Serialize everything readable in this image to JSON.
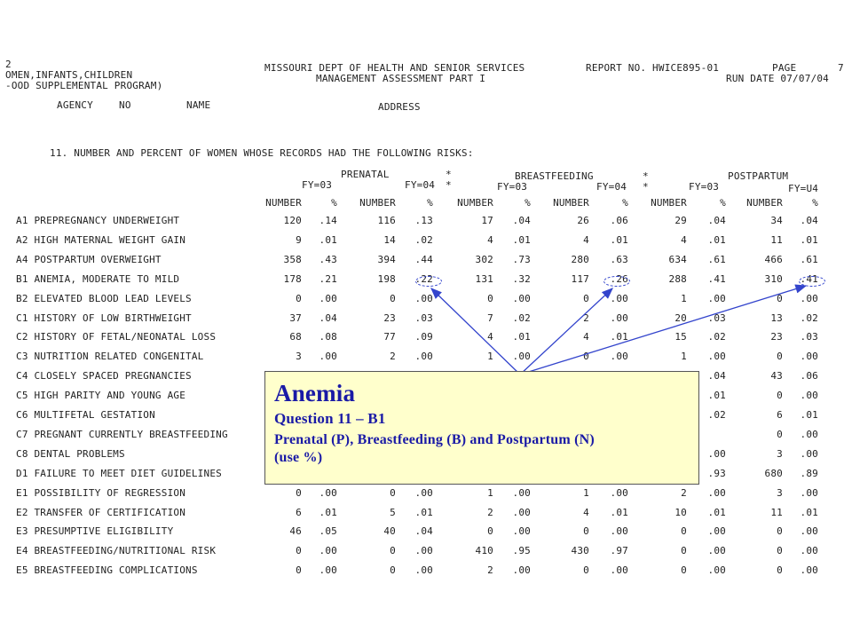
{
  "header": {
    "left_mark": "2",
    "left_line1": "OMEN,INFANTS,CHILDREN",
    "left_line2": "-OOD SUPPLEMENTAL PROGRAM)",
    "center_line1": "MISSOURI DEPT OF HEALTH AND SENIOR SERVICES",
    "center_line2": "MANAGEMENT ASSESSMENT PART I",
    "report_no": "REPORT NO. HWICE895-01",
    "page_label": "PAGE",
    "page_no": "7",
    "run_date": "RUN DATE 07/07/04",
    "agency_label": "AGENCY",
    "no_label": "NO",
    "name_label": "NAME",
    "address_label": "ADDRESS"
  },
  "section_title": "11. NUMBER AND PERCENT OF WOMEN WHOSE RECORDS HAD THE FOLLOWING RISKS:",
  "groups": {
    "prenatal": "PRENATAL",
    "breastfeeding": "BREASTFEEDING",
    "postpartum": "POSTPARTUM",
    "star": "*",
    "fy03": "FY=03",
    "fy04": "FY=04",
    "fy04_alt": "FY=U4"
  },
  "col_headers": [
    "NUMBER",
    "%",
    "NUMBER",
    "%",
    "NUMBER",
    "%",
    "NUMBER",
    "%",
    "NUMBER",
    "%",
    "NUMBER",
    "%"
  ],
  "rows": [
    {
      "label": "A1 PREPREGNANCY UNDERWEIGHT",
      "values": [
        "120",
        ".14",
        "116",
        ".13",
        "17",
        ".04",
        "26",
        ".06",
        "29",
        ".04",
        "34",
        ".04"
      ]
    },
    {
      "label": "A2 HIGH MATERNAL WEIGHT GAIN",
      "values": [
        "9",
        ".01",
        "14",
        ".02",
        "4",
        ".01",
        "4",
        ".01",
        "4",
        ".01",
        "11",
        ".01"
      ]
    },
    {
      "label": "A4 POSTPARTUM OVERWEIGHT",
      "values": [
        "358",
        ".43",
        "394",
        ".44",
        "302",
        ".73",
        "280",
        ".63",
        "634",
        ".61",
        "466",
        ".61"
      ]
    },
    {
      "label": "B1 ANEMIA, MODERATE TO MILD",
      "values": [
        "178",
        ".21",
        "198",
        ".22",
        "131",
        ".32",
        "117",
        ".26",
        "288",
        ".41",
        "310",
        ".41"
      ]
    },
    {
      "label": "B2 ELEVATED BLOOD LEAD LEVELS",
      "values": [
        "0",
        ".00",
        "0",
        ".00",
        "0",
        ".00",
        "0",
        ".00",
        "1",
        ".00",
        "0",
        ".00"
      ]
    },
    {
      "label": "C1 HISTORY OF LOW BIRTHWEIGHT",
      "values": [
        "37",
        ".04",
        "23",
        ".03",
        "7",
        ".02",
        "2",
        ".00",
        "20",
        ".03",
        "13",
        ".02"
      ]
    },
    {
      "label": "C2 HISTORY OF FETAL/NEONATAL LOSS",
      "values": [
        "68",
        ".08",
        "77",
        ".09",
        "4",
        ".01",
        "4",
        ".01",
        "15",
        ".02",
        "23",
        ".03"
      ]
    },
    {
      "label": "C3 NUTRITION RELATED CONGENITAL",
      "values": [
        "3",
        ".00",
        "2",
        ".00",
        "1",
        ".00",
        "0",
        ".00",
        "1",
        ".00",
        "0",
        ".00"
      ]
    },
    {
      "label": "C4 CLOSELY SPACED PREGNANCIES",
      "values": [
        "",
        "",
        "",
        "",
        "",
        "",
        "",
        "",
        "",
        ".04",
        "43",
        ".06"
      ]
    },
    {
      "label": "C5 HIGH PARITY AND YOUNG AGE",
      "values": [
        "",
        "",
        "",
        "",
        "",
        "",
        "",
        "",
        "",
        ".01",
        "0",
        ".00"
      ]
    },
    {
      "label": "C6 MULTIFETAL GESTATION",
      "values": [
        "",
        "",
        "",
        "",
        "",
        "",
        "",
        "",
        "",
        ".02",
        "6",
        ".01"
      ]
    },
    {
      "label": "C7 PREGNANT CURRENTLY BREASTFEEDING",
      "values": [
        "",
        "",
        "",
        "",
        "",
        "",
        "",
        "",
        "",
        "",
        "0",
        ".00"
      ]
    },
    {
      "label": "C8 DENTAL PROBLEMS",
      "values": [
        "",
        "",
        "",
        "",
        "",
        "",
        "",
        "",
        "",
        ".00",
        "3",
        ".00"
      ]
    },
    {
      "label": "D1 FAILURE TO MEET DIET GUIDELINES",
      "values": [
        "",
        "",
        "",
        "",
        "",
        "",
        "",
        "",
        "",
        ".93",
        "680",
        ".89"
      ]
    },
    {
      "label": "E1 POSSIBILITY OF REGRESSION",
      "values": [
        "0",
        ".00",
        "0",
        ".00",
        "1",
        ".00",
        "1",
        ".00",
        "2",
        ".00",
        "3",
        ".00"
      ]
    },
    {
      "label": "E2 TRANSFER OF CERTIFICATION",
      "values": [
        "6",
        ".01",
        "5",
        ".01",
        "2",
        ".00",
        "4",
        ".01",
        "10",
        ".01",
        "11",
        ".01"
      ]
    },
    {
      "label": "E3 PRESUMPTIVE ELIGIBILITY",
      "values": [
        "46",
        ".05",
        "40",
        ".04",
        "0",
        ".00",
        "0",
        ".00",
        "0",
        ".00",
        "0",
        ".00"
      ]
    },
    {
      "label": "E4 BREASTFEEDING/NUTRITIONAL RISK",
      "values": [
        "0",
        ".00",
        "0",
        ".00",
        "410",
        ".95",
        "430",
        ".97",
        "0",
        ".00",
        "0",
        ".00"
      ]
    },
    {
      "label": "E5 BREASTFEEDING COMPLICATIONS",
      "values": [
        "0",
        ".00",
        "0",
        ".00",
        "2",
        ".00",
        "0",
        ".00",
        "0",
        ".00",
        "0",
        ".00"
      ]
    }
  ],
  "callout": {
    "title": "Anemia",
    "subtitle": "Question 11 – B1",
    "note_line1": "Prenatal (P),  Breastfeeding (B) and Postpartum (N)",
    "note_line2": "(use %)"
  },
  "colors": {
    "annotation": "#3344cc",
    "callout_bg": "#ffffcc",
    "callout_text": "#1a1aa6"
  }
}
